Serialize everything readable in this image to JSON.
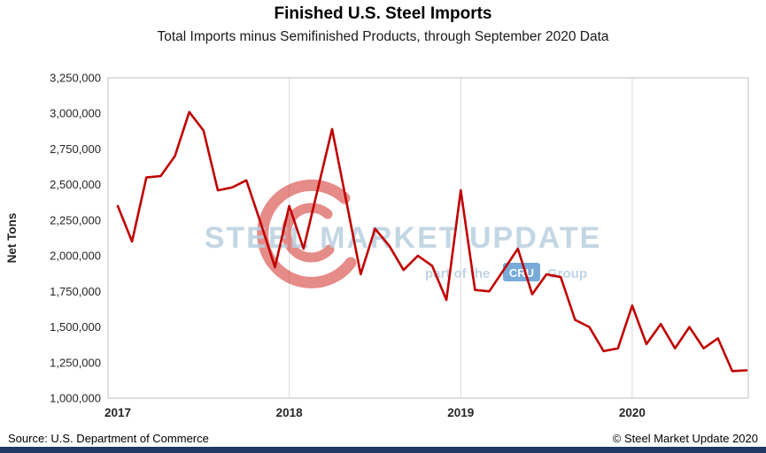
{
  "chart_data": {
    "type": "line",
    "title": "Finished U.S. Steel Imports",
    "subtitle": "Total Imports minus Semifinished Products, through September 2020 Data",
    "ylabel": "Net Tons",
    "ylim": [
      1000000,
      3250000
    ],
    "y_tick_step": 250000,
    "y_tick_labels": [
      "1,000,000",
      "1,250,000",
      "1,500,000",
      "1,750,000",
      "2,000,000",
      "2,250,000",
      "2,500,000",
      "2,750,000",
      "3,000,000",
      "3,250,000"
    ],
    "x_tick_labels": [
      "2017",
      "2018",
      "2019",
      "2020"
    ],
    "x_tick_month_index": [
      0,
      12,
      24,
      36
    ],
    "months": [
      "Jan 2017",
      "Feb 2017",
      "Mar 2017",
      "Apr 2017",
      "May 2017",
      "Jun 2017",
      "Jul 2017",
      "Aug 2017",
      "Sep 2017",
      "Oct 2017",
      "Nov 2017",
      "Dec 2017",
      "Jan 2018",
      "Feb 2018",
      "Mar 2018",
      "Apr 2018",
      "May 2018",
      "Jun 2018",
      "Jul 2018",
      "Aug 2018",
      "Sep 2018",
      "Oct 2018",
      "Nov 2018",
      "Dec 2018",
      "Jan 2019",
      "Feb 2019",
      "Mar 2019",
      "Apr 2019",
      "May 2019",
      "Jun 2019",
      "Jul 2019",
      "Aug 2019",
      "Sep 2019",
      "Oct 2019",
      "Nov 2019",
      "Dec 2019",
      "Jan 2020",
      "Feb 2020",
      "Mar 2020",
      "Apr 2020",
      "May 2020",
      "Jun 2020",
      "Jul 2020",
      "Aug 2020",
      "Sep 2020"
    ],
    "values": [
      2350000,
      2100000,
      2550000,
      2560000,
      2700000,
      3010000,
      2880000,
      2460000,
      2480000,
      2530000,
      2230000,
      1920000,
      2350000,
      2050000,
      2470000,
      2890000,
      2380000,
      1870000,
      2190000,
      2070000,
      1900000,
      2000000,
      1930000,
      1690000,
      2460000,
      1760000,
      1750000,
      1900000,
      2050000,
      1730000,
      1870000,
      1850000,
      1550000,
      1500000,
      1330000,
      1350000,
      1650000,
      1380000,
      1520000,
      1350000,
      1500000,
      1350000,
      1420000,
      1190000,
      1195000
    ],
    "line_color": "#C00000",
    "grid_color": "#D9D9D9",
    "border_color": "#BFBFBF",
    "grid": "vertical-year-lines-only",
    "legend_position": "none"
  },
  "watermark": {
    "main": "STEEL MARKET UPDATE",
    "sub_prefix": "part of the",
    "sub_badge": "CRU",
    "sub_suffix": "Group",
    "text_color": "#B9CFE0",
    "badge_color": "#3F87C9",
    "badge_text_color": "#FFFFFF",
    "swirl_color": "#D02B27"
  },
  "footer": {
    "source": "Source: U.S. Department of Commerce",
    "copyright": "© Steel Market Update 2020",
    "bar_color": "#1F3864"
  }
}
